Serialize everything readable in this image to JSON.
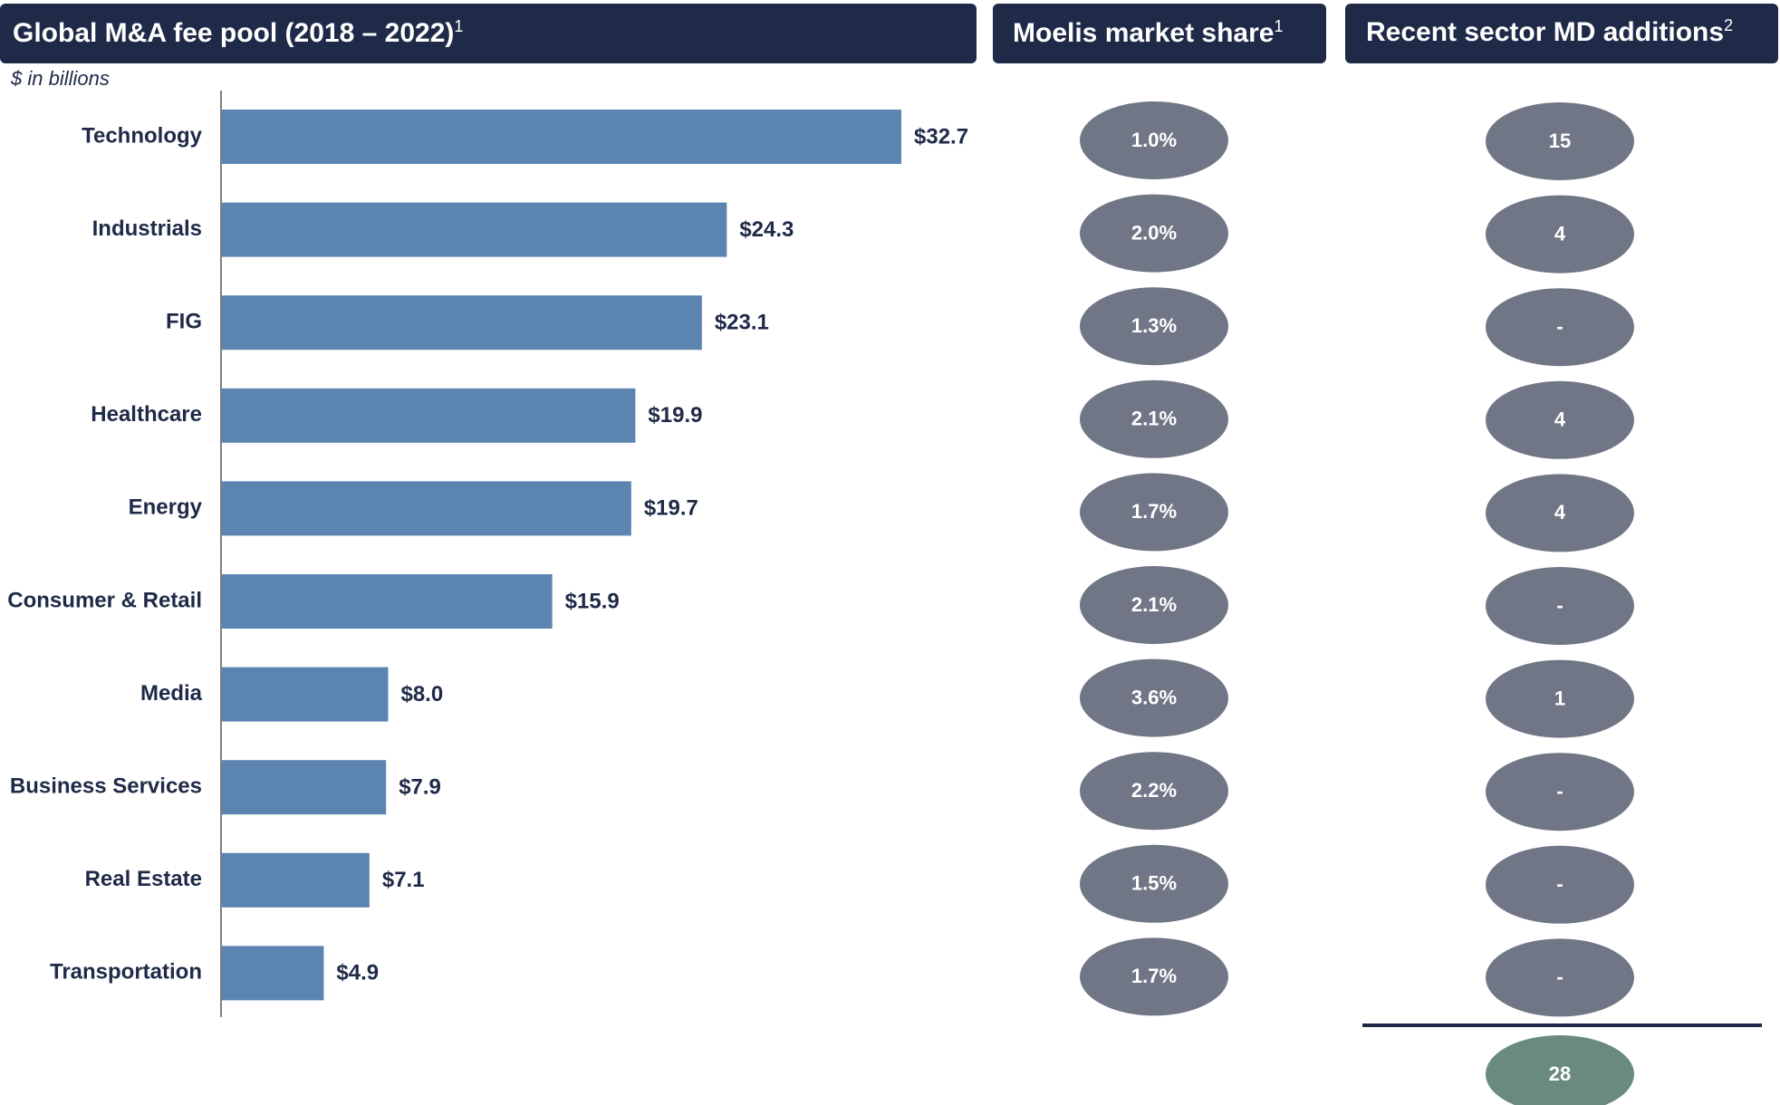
{
  "chart_data": {
    "type": "bar",
    "orientation": "horizontal",
    "title": "Global M&A fee pool (2018 – 2022)",
    "title_note": "1",
    "subtitle": "$ in billions",
    "categories": [
      "Technology",
      "Industrials",
      "FIG",
      "Healthcare",
      "Energy",
      "Consumer & Retail",
      "Media",
      "Business Services",
      "Real Estate",
      "Transportation"
    ],
    "values": [
      32.7,
      24.3,
      23.1,
      19.9,
      19.7,
      15.9,
      8.0,
      7.9,
      7.1,
      4.9
    ],
    "value_labels": [
      "$32.7",
      "$24.3",
      "$23.1",
      "$19.9",
      "$19.7",
      "$15.9",
      "$8.0",
      "$7.9",
      "$7.1",
      "$4.9"
    ],
    "color": "#5b84b1"
  },
  "market_share": {
    "title": "Moelis market share",
    "title_note": "1",
    "values": [
      1.0,
      2.0,
      1.3,
      2.1,
      1.7,
      2.1,
      3.6,
      2.2,
      1.5,
      1.7
    ],
    "value_labels": [
      "1.0%",
      "2.0%",
      "1.3%",
      "2.1%",
      "1.7%",
      "2.1%",
      "3.6%",
      "2.2%",
      "1.5%",
      "1.7%"
    ],
    "color": "#707686"
  },
  "md_additions": {
    "title": "Recent sector MD additions",
    "title_note": "2",
    "labels": [
      "15",
      "4",
      "-",
      "4",
      "4",
      "-",
      "1",
      "-",
      "-",
      "-"
    ],
    "total": "28",
    "color": "#707686",
    "total_color": "#6a8a80"
  }
}
